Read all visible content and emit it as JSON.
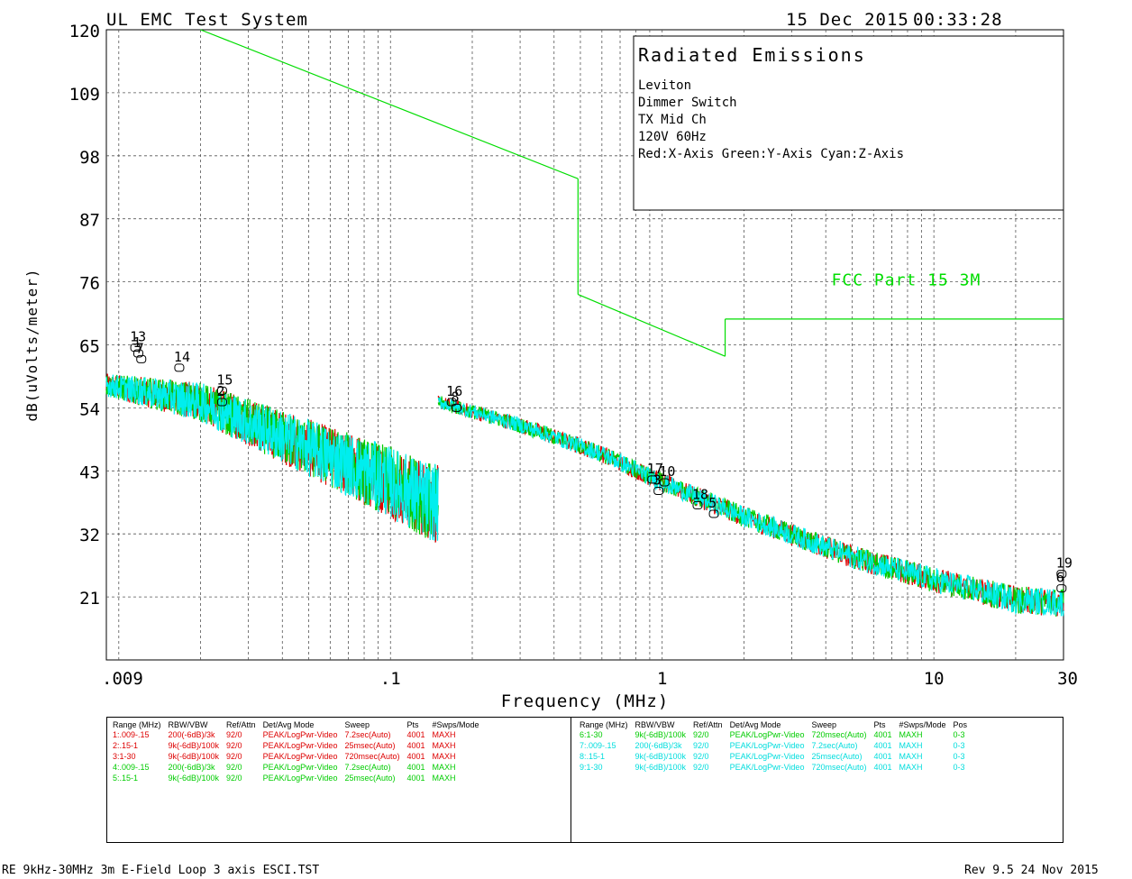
{
  "header": {
    "system_title": "UL EMC Test System",
    "date": "15 Dec 2015",
    "time": "00:33:28"
  },
  "info_box": {
    "title": "Radiated Emissions",
    "lines": [
      "Leviton",
      "Dimmer Switch",
      "TX Mid Ch",
      "120V 60Hz",
      "Red:X-Axis Green:Y-Axis Cyan:Z-Axis"
    ]
  },
  "chart_data": {
    "type": "line",
    "xscale": "log",
    "xlim": [
      0.009,
      30
    ],
    "ylim": [
      10,
      120
    ],
    "xlabel": "Frequency (MHz)",
    "ylabel": "dB(uVolts/meter)",
    "xtick_labels": [
      ".009",
      ".1",
      "1",
      "10",
      "30"
    ],
    "xtick_values": [
      0.009,
      0.1,
      1,
      10,
      30
    ],
    "ytick_labels": [
      "120",
      "109",
      "98",
      "87",
      "76",
      "65",
      "54",
      "43",
      "32",
      "21"
    ],
    "ytick_values": [
      120,
      109,
      98,
      87,
      76,
      65,
      54,
      43,
      32,
      21
    ],
    "grid": true,
    "colors": {
      "x_axis": "#dd0000",
      "y_axis": "#00cc00",
      "z_axis": "#00eeee",
      "limit": "#00dd00",
      "marker": "#000000"
    },
    "limit_line": {
      "name": "FCC Part 15 3M",
      "segments": [
        [
          [
            0.02,
            120
          ],
          [
            0.49,
            94
          ]
        ],
        [
          [
            0.49,
            94
          ],
          [
            0.49,
            73.8
          ]
        ],
        [
          [
            0.49,
            73.8
          ],
          [
            1.705,
            63
          ]
        ],
        [
          [
            1.705,
            63
          ],
          [
            1.705,
            69.5
          ]
        ],
        [
          [
            1.705,
            69.5
          ],
          [
            30,
            69.5
          ]
        ]
      ]
    },
    "series": [
      {
        "band": "1",
        "points": [
          [
            0.009,
            58
          ],
          [
            0.02,
            55
          ],
          [
            0.05,
            47
          ],
          [
            0.1,
            41
          ],
          [
            0.15,
            37
          ]
        ]
      },
      {
        "band": "2",
        "points": [
          [
            0.15,
            55
          ],
          [
            0.3,
            51
          ],
          [
            0.6,
            46
          ],
          [
            1,
            41
          ],
          [
            2,
            35
          ],
          [
            5,
            28
          ],
          [
            10,
            24
          ],
          [
            20,
            20.5
          ],
          [
            30,
            20
          ]
        ]
      }
    ],
    "markers": [
      {
        "label": "13",
        "x": 0.0115,
        "y": 64.5
      },
      {
        "label": "1",
        "x": 0.0118,
        "y": 63.5
      },
      {
        "label": "7",
        "x": 0.0121,
        "y": 62.5
      },
      {
        "label": "14",
        "x": 0.0167,
        "y": 61
      },
      {
        "label": "15",
        "x": 0.024,
        "y": 57
      },
      {
        "label": "2",
        "x": 0.024,
        "y": 55
      },
      {
        "label": "16",
        "x": 0.168,
        "y": 55
      },
      {
        "label": "8",
        "x": 0.175,
        "y": 54
      },
      {
        "label": "17",
        "x": 0.92,
        "y": 41.5
      },
      {
        "label": "3",
        "x": 0.97,
        "y": 39.5
      },
      {
        "label": "10",
        "x": 1.02,
        "y": 41
      },
      {
        "label": "18",
        "x": 1.35,
        "y": 37
      },
      {
        "label": "5",
        "x": 1.55,
        "y": 35.5
      },
      {
        "label": "19",
        "x": 29.5,
        "y": 25
      },
      {
        "label": "6",
        "x": 29.5,
        "y": 22.5
      }
    ]
  },
  "settings_table": {
    "headers": [
      "Range (MHz)",
      "RBW/VBW",
      "Ref/Attn",
      "Det/Avg Mode",
      "Sweep",
      "Pts",
      "#Swps/Mode"
    ],
    "headers_right": [
      "Range (MHz)",
      "RBW/VBW",
      "Ref/Attn",
      "Det/Avg Mode",
      "Sweep",
      "Pts",
      "#Swps/Mode",
      "Pos"
    ],
    "left_rows": [
      {
        "color": "#dd0000",
        "cells": [
          "1:.009-.15",
          "200(-6dB)/3k",
          "92/0",
          "PEAK/LogPwr-Video",
          "7.2sec(Auto)",
          "4001",
          "MAXH"
        ]
      },
      {
        "color": "#dd0000",
        "cells": [
          "2:.15-1",
          "9k(-6dB)/100k",
          "92/0",
          "PEAK/LogPwr-Video",
          "25msec(Auto)",
          "4001",
          "MAXH"
        ]
      },
      {
        "color": "#dd0000",
        "cells": [
          "3:1-30",
          "9k(-6dB)/100k",
          "92/0",
          "PEAK/LogPwr-Video",
          "720msec(Auto)",
          "4001",
          "MAXH"
        ]
      },
      {
        "color": "#00cc00",
        "cells": [
          "4:.009-.15",
          "200(-6dB)/3k",
          "92/0",
          "PEAK/LogPwr-Video",
          "7.2sec(Auto)",
          "4001",
          "MAXH"
        ]
      },
      {
        "color": "#00cc00",
        "cells": [
          "5:.15-1",
          "9k(-6dB)/100k",
          "92/0",
          "PEAK/LogPwr-Video",
          "25msec(Auto)",
          "4001",
          "MAXH"
        ]
      }
    ],
    "right_rows": [
      {
        "color": "#00cc00",
        "cells": [
          "6:1-30",
          "9k(-6dB)/100k",
          "92/0",
          "PEAK/LogPwr-Video",
          "720msec(Auto)",
          "4001",
          "MAXH",
          "0-3"
        ]
      },
      {
        "color": "#00dddd",
        "cells": [
          "7:.009-.15",
          "200(-6dB)/3k",
          "92/0",
          "PEAK/LogPwr-Video",
          "7.2sec(Auto)",
          "4001",
          "MAXH",
          "0-3"
        ]
      },
      {
        "color": "#00dddd",
        "cells": [
          "8:.15-1",
          "9k(-6dB)/100k",
          "92/0",
          "PEAK/LogPwr-Video",
          "25msec(Auto)",
          "4001",
          "MAXH",
          "0-3"
        ]
      },
      {
        "color": "#00dddd",
        "cells": [
          "9:1-30",
          "9k(-6dB)/100k",
          "92/0",
          "PEAK/LogPwr-Video",
          "720msec(Auto)",
          "4001",
          "MAXH",
          "0-3"
        ]
      }
    ]
  },
  "footer": {
    "left": "RE 9kHz-30MHz 3m E-Field Loop 3 axis ESCI.TST",
    "right": "Rev 9.5 24 Nov 2015"
  }
}
